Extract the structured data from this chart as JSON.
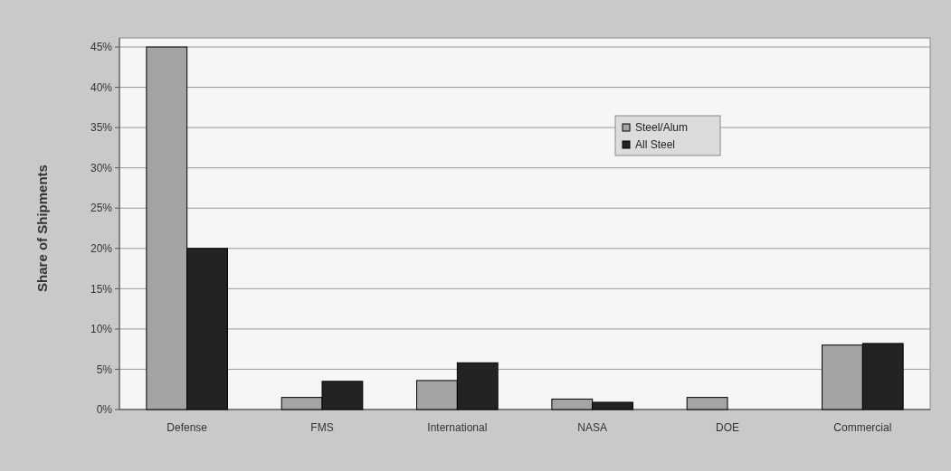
{
  "chart_data": {
    "type": "bar",
    "ylabel": "Share of Shipments",
    "categories": [
      "Defense",
      "FMS",
      "International",
      "NASA",
      "DOE",
      "Commercial"
    ],
    "series": [
      {
        "name": "Steel/Alum",
        "color": "#a4a4a4",
        "values": [
          45,
          1.5,
          3.6,
          1.3,
          1.5,
          8.0
        ]
      },
      {
        "name": "All Steel",
        "color": "#232323",
        "values": [
          20,
          3.5,
          5.8,
          0.9,
          0,
          8.2
        ]
      }
    ],
    "ylim": [
      0,
      45
    ],
    "yticks": [
      {
        "value": 0,
        "label": "0%"
      },
      {
        "value": 5,
        "label": "5%"
      },
      {
        "value": 10,
        "label": "10%"
      },
      {
        "value": 15,
        "label": "15%"
      },
      {
        "value": 20,
        "label": "20%"
      },
      {
        "value": 25,
        "label": "25%"
      },
      {
        "value": 30,
        "label": "30%"
      },
      {
        "value": 35,
        "label": "35%"
      },
      {
        "value": 40,
        "label": "40%"
      },
      {
        "value": 45,
        "label": "45%"
      }
    ],
    "grid": "y",
    "legend": "top right"
  }
}
